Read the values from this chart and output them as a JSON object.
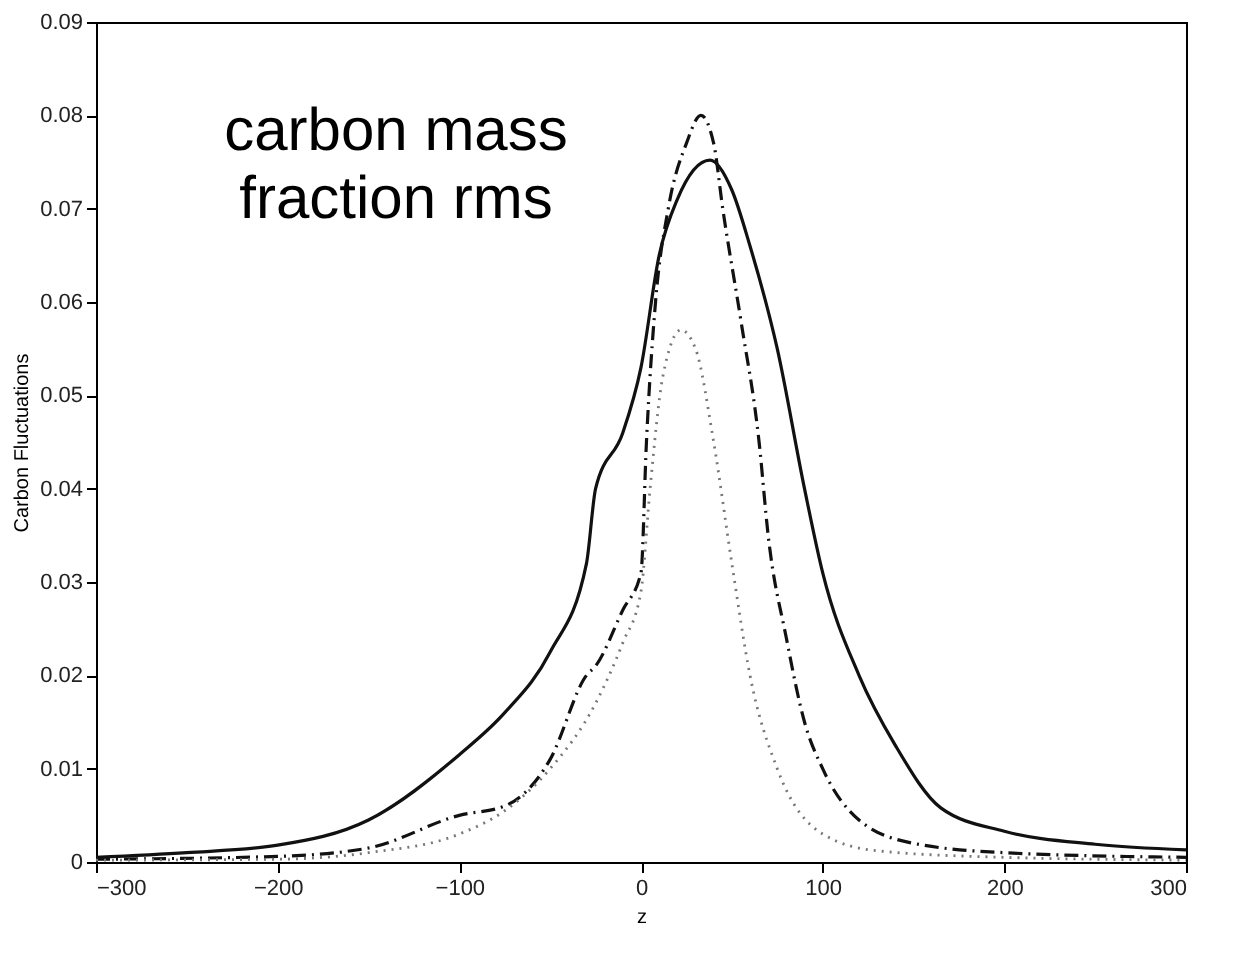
{
  "chart_data": {
    "type": "line",
    "xlabel": "z",
    "ylabel": "Carbon Fluctuations",
    "annotations": [
      "carbon mass fraction rms"
    ],
    "xlim": [
      -300,
      300
    ],
    "xticks": [
      -300,
      -200,
      -100,
      0,
      100,
      200,
      300
    ],
    "ylim": [
      0,
      0.09
    ],
    "yticks": [
      0,
      0.01,
      0.02,
      0.03,
      0.04,
      0.05,
      0.06,
      0.07,
      0.08,
      0.09
    ],
    "grid": false,
    "marker": "none",
    "series": [
      {
        "color": "#111111",
        "line_style": "solid",
        "x": [
          -300,
          -250,
          -200,
          -150,
          -100,
          -75,
          -50,
          -30,
          -25,
          -10,
          0,
          10,
          20,
          38,
          50,
          60,
          75,
          90,
          100,
          120,
          140,
          165,
          200,
          250,
          300
        ],
        "values": [
          0.0005,
          0.001,
          0.0018,
          0.0045,
          0.0115,
          0.016,
          0.0225,
          0.032,
          0.04,
          0.046,
          0.053,
          0.065,
          0.071,
          0.0752,
          0.072,
          0.066,
          0.055,
          0.04,
          0.031,
          0.02,
          0.0125,
          0.0058,
          0.0033,
          0.0019,
          0.0013
        ]
      },
      {
        "color": "#111111",
        "line_style": "dashdot",
        "x": [
          -300,
          -200,
          -150,
          -100,
          -75,
          -50,
          -30,
          -25,
          -10,
          0,
          3,
          8,
          15,
          25,
          33,
          40,
          45,
          55,
          65,
          70,
          80,
          90,
          100,
          120,
          150,
          200,
          300
        ],
        "values": [
          0.0003,
          0.0006,
          0.0015,
          0.005,
          0.006,
          0.011,
          0.02,
          0.021,
          0.027,
          0.031,
          0.045,
          0.06,
          0.07,
          0.077,
          0.08,
          0.077,
          0.07,
          0.058,
          0.045,
          0.035,
          0.024,
          0.015,
          0.01,
          0.0045,
          0.002,
          0.001,
          0.0005
        ]
      },
      {
        "color": "#777777",
        "line_style": "dotted",
        "x": [
          -300,
          -200,
          -150,
          -100,
          -75,
          -50,
          -25,
          -10,
          0,
          5,
          12,
          22,
          30,
          40,
          50,
          60,
          75,
          100,
          130,
          200,
          300
        ],
        "values": [
          0.0002,
          0.0003,
          0.001,
          0.003,
          0.0055,
          0.01,
          0.017,
          0.0235,
          0.029,
          0.04,
          0.052,
          0.057,
          0.055,
          0.045,
          0.032,
          0.02,
          0.01,
          0.003,
          0.0012,
          0.0005,
          0.0002
        ]
      }
    ]
  }
}
